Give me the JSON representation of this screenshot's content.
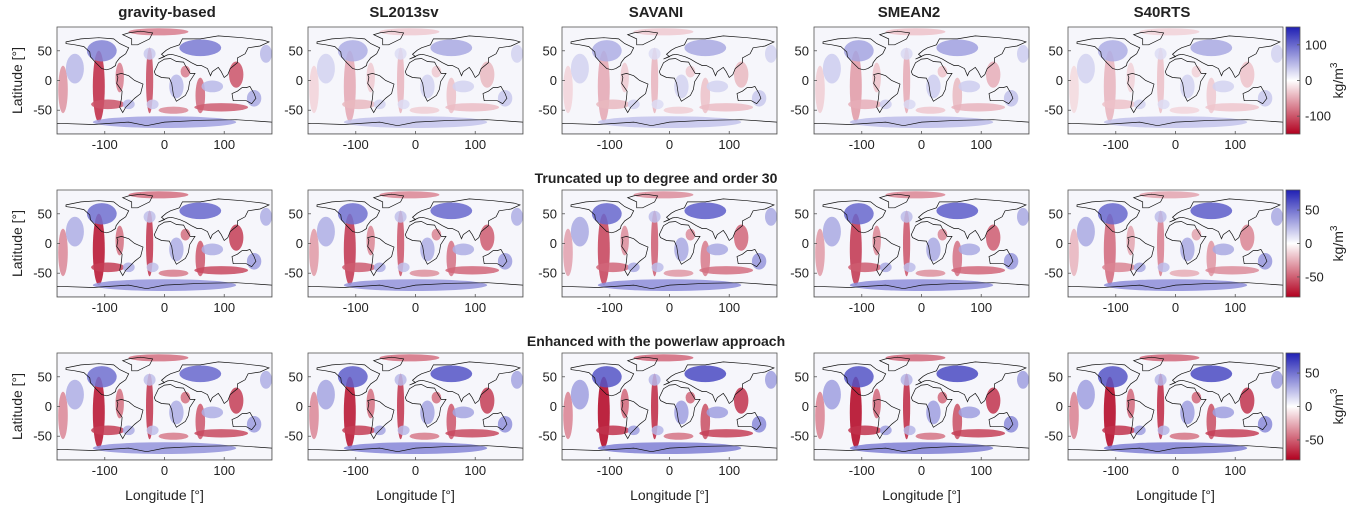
{
  "figure": {
    "column_titles": [
      "gravity-based",
      "SL2013sv",
      "SAVANI",
      "SMEAN2",
      "S40RTS"
    ],
    "row_titles": [
      "",
      "Truncated up to degree and order 30",
      "Enhanced with the powerlaw approach"
    ],
    "ylabel": "Latitude [°]",
    "xlabel": "Longitude [°]",
    "colorbar_label_base": "kg/m",
    "colorbar_label_exp": "3"
  },
  "chart_data": {
    "type": "heatmap",
    "x_ticks": [
      -100,
      0,
      100
    ],
    "y_ticks": [
      50,
      0,
      -50
    ],
    "x_range": [
      -180,
      180
    ],
    "y_range": [
      -90,
      90
    ],
    "colormap": {
      "negative": "#b2001f",
      "zero": "#ffffff",
      "positive": "#1f1fb4"
    },
    "colorbars": [
      {
        "row": 1,
        "range": [
          -150,
          150
        ],
        "ticks": [
          100,
          0,
          -100
        ]
      },
      {
        "row": 2,
        "range": [
          -80,
          80
        ],
        "ticks": [
          50,
          0,
          -50
        ]
      },
      {
        "row": 3,
        "range": [
          -80,
          80
        ],
        "ticks": [
          50,
          0,
          -50
        ]
      }
    ],
    "panels": [
      {
        "row": 1,
        "column": "gravity-based",
        "red_strength": 0.85,
        "blue_strength": 0.7
      },
      {
        "row": 1,
        "column": "SL2013sv",
        "red_strength": 0.35,
        "blue_strength": 0.45
      },
      {
        "row": 1,
        "column": "SAVANI",
        "red_strength": 0.35,
        "blue_strength": 0.45
      },
      {
        "row": 1,
        "column": "SMEAN2",
        "red_strength": 0.4,
        "blue_strength": 0.5
      },
      {
        "row": 1,
        "column": "S40RTS",
        "red_strength": 0.3,
        "blue_strength": 0.45
      },
      {
        "row": 2,
        "column": "gravity-based",
        "red_strength": 0.95,
        "blue_strength": 0.8
      },
      {
        "row": 2,
        "column": "SL2013sv",
        "red_strength": 0.8,
        "blue_strength": 0.8
      },
      {
        "row": 2,
        "column": "SAVANI",
        "red_strength": 0.75,
        "blue_strength": 0.85
      },
      {
        "row": 2,
        "column": "SMEAN2",
        "red_strength": 0.8,
        "blue_strength": 0.85
      },
      {
        "row": 2,
        "column": "S40RTS",
        "red_strength": 0.6,
        "blue_strength": 0.85
      },
      {
        "row": 3,
        "column": "gravity-based",
        "red_strength": 0.95,
        "blue_strength": 0.8
      },
      {
        "row": 3,
        "column": "SL2013sv",
        "red_strength": 0.95,
        "blue_strength": 0.9
      },
      {
        "row": 3,
        "column": "SAVANI",
        "red_strength": 1.0,
        "blue_strength": 0.95
      },
      {
        "row": 3,
        "column": "SMEAN2",
        "red_strength": 1.0,
        "blue_strength": 0.95
      },
      {
        "row": 3,
        "column": "S40RTS",
        "red_strength": 1.0,
        "blue_strength": 0.95
      }
    ]
  }
}
